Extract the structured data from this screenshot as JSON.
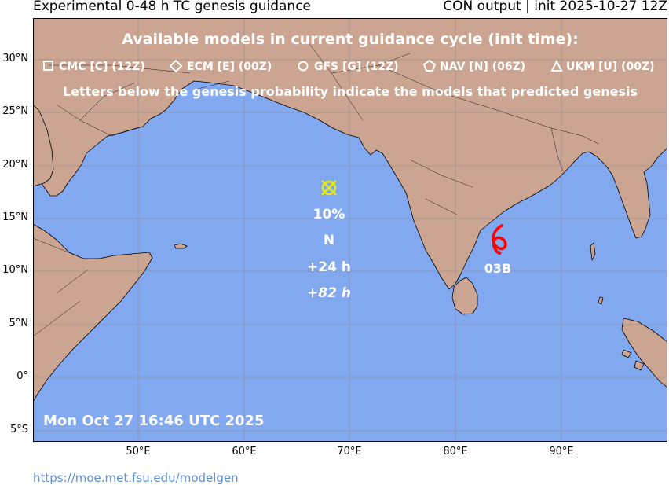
{
  "header": {
    "title_left": "Experimental 0-48 h TC genesis guidance",
    "title_right": "CON output | init 2025-10-27 12Z"
  },
  "legend": {
    "heading": "Available models in current guidance cycle (init time):",
    "models": [
      {
        "symbol": "square",
        "label": "CMC [C] (12Z)"
      },
      {
        "symbol": "diamond",
        "label": "ECM [E] (00Z)"
      },
      {
        "symbol": "circle",
        "label": "GFS [G] (12Z)"
      },
      {
        "symbol": "pentagon",
        "label": "NAV [N] (06Z)"
      },
      {
        "symbol": "triangle",
        "label": "UKM [U] (00Z)"
      }
    ],
    "note": "Letters below the genesis probability indicate the models that predicted genesis"
  },
  "genesis_area": {
    "probability": "10%",
    "models": "N",
    "lead_time": "+24 h",
    "lead_time_italic": "+82 h",
    "marker_color": "#e8e81a"
  },
  "storm": {
    "name": "03B",
    "icon": "tropical-cyclone-icon",
    "color": "#ff0000"
  },
  "timestamp": "Mon Oct 27 16:46 UTC 2025",
  "axes": {
    "lat_labels": [
      "30°N",
      "25°N",
      "20°N",
      "15°N",
      "10°N",
      "5°N",
      "0°",
      "5°S"
    ],
    "lon_labels": [
      "50°E",
      "60°E",
      "70°E",
      "80°E",
      "90°E"
    ]
  },
  "colors": {
    "ocean": "#82a8f0",
    "land": "#cba591",
    "border": "#000000"
  },
  "footer": {
    "url": "https://moe.met.fsu.edu/modelgen"
  }
}
